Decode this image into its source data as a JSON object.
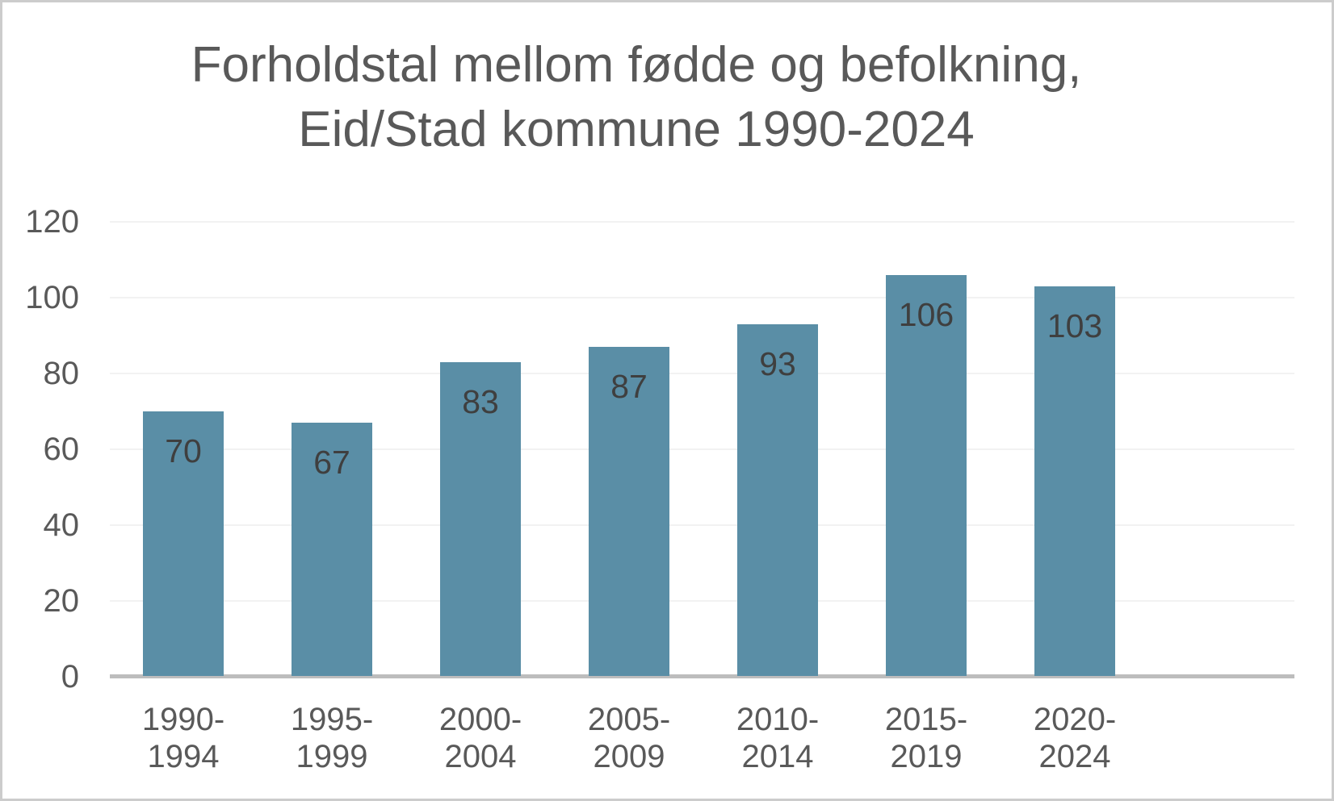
{
  "chart_data": {
    "type": "bar",
    "title": "Forholdstal mellom fødde og befolkning, Eid/Stad kommune 1990-2024",
    "title_lines": [
      "Forholdstal mellom fødde og befolkning,",
      "Eid/Stad kommune 1990-2024"
    ],
    "categories": [
      "1990-1994",
      "1995-1999",
      "2000-2004",
      "2005-2009",
      "2010-2014",
      "2015-2019",
      "2020-2024"
    ],
    "category_label_lines": [
      [
        "1990-",
        "1994"
      ],
      [
        "1995-",
        "1999"
      ],
      [
        "2000-",
        "2004"
      ],
      [
        "2005-",
        "2009"
      ],
      [
        "2010-",
        "2014"
      ],
      [
        "2015-",
        "2019"
      ],
      [
        "2020-",
        "2024"
      ]
    ],
    "values": [
      70,
      67,
      83,
      87,
      93,
      106,
      103
    ],
    "xlabel": "",
    "ylabel": "",
    "ylim": [
      0,
      120
    ],
    "yticks": [
      0,
      20,
      40,
      60,
      80,
      100,
      120
    ],
    "grid": "horizontal",
    "legend": "none",
    "data_labels_position": "inside-end",
    "colors": {
      "bar": "#5a8ea6",
      "title_text": "#595959",
      "axis_tick_text": "#595959",
      "data_label_text": "#3f3f3f",
      "axis_line": "#bdbdbd",
      "gridline": "#f2f2f2",
      "background": "#ffffff",
      "frame_border": "#cccccc"
    }
  }
}
